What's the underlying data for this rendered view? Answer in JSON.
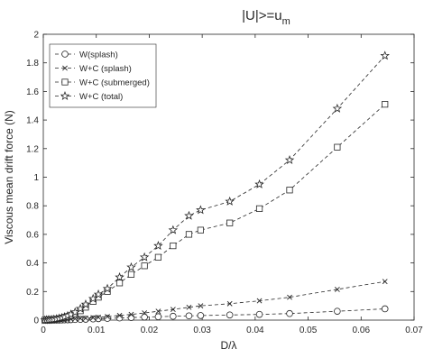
{
  "chart_data": {
    "type": "line",
    "title": "|U|>=u",
    "title_subscript": "m",
    "xlabel": "D/λ",
    "ylabel": "Viscous mean drift force (N)",
    "xlim": [
      0,
      0.07
    ],
    "ylim": [
      0,
      2
    ],
    "x_ticks": [
      "0",
      "0.01",
      "0.02",
      "0.03",
      "0.04",
      "0.05",
      "0.06",
      "0.07"
    ],
    "y_ticks": [
      "0",
      "0.2",
      "0.4",
      "0.6",
      "0.8",
      "1",
      "1.2",
      "1.4",
      "1.6",
      "1.8",
      "2"
    ],
    "x_tick_values": [
      0,
      0.01,
      0.02,
      0.03,
      0.04,
      0.05,
      0.06,
      0.07
    ],
    "y_tick_values": [
      0,
      0.2,
      0.4,
      0.6,
      0.8,
      1.0,
      1.2,
      1.4,
      1.6,
      1.8,
      2.0
    ],
    "grid": false,
    "legend_position": "top-left",
    "line_style": "dashed",
    "color": "#262626",
    "series": [
      {
        "name": "W(splash)",
        "marker": "circle",
        "x": [
          0.0003,
          0.0006,
          0.0009,
          0.0012,
          0.0016,
          0.002,
          0.0025,
          0.003,
          0.0035,
          0.004,
          0.0046,
          0.0052,
          0.006,
          0.007,
          0.008,
          0.0094,
          0.0104,
          0.0121,
          0.0144,
          0.0166,
          0.0191,
          0.0217,
          0.0245,
          0.0275,
          0.0297,
          0.0352,
          0.0408,
          0.0465,
          0.0555,
          0.0645
        ],
        "y": [
          0.0,
          0.0,
          0.0,
          0.0,
          0.0,
          0.0,
          0.0,
          0.0,
          0.001,
          0.002,
          0.002,
          0.003,
          0.004,
          0.005,
          0.006,
          0.008,
          0.01,
          0.012,
          0.015,
          0.018,
          0.021,
          0.024,
          0.027,
          0.03,
          0.032,
          0.036,
          0.04,
          0.046,
          0.062,
          0.079
        ]
      },
      {
        "name": "W+C (splash)",
        "marker": "x",
        "x": [
          0.0003,
          0.0006,
          0.0009,
          0.0012,
          0.0016,
          0.002,
          0.0025,
          0.003,
          0.0035,
          0.004,
          0.0046,
          0.0052,
          0.006,
          0.007,
          0.008,
          0.0094,
          0.0104,
          0.0121,
          0.0144,
          0.0166,
          0.0191,
          0.0217,
          0.0245,
          0.0275,
          0.0297,
          0.0352,
          0.0408,
          0.0465,
          0.0555,
          0.0645
        ],
        "y": [
          0.0,
          0.0,
          0.0,
          0.001,
          0.001,
          0.002,
          0.003,
          0.004,
          0.005,
          0.006,
          0.007,
          0.008,
          0.01,
          0.012,
          0.014,
          0.017,
          0.02,
          0.025,
          0.033,
          0.04,
          0.05,
          0.062,
          0.075,
          0.09,
          0.1,
          0.115,
          0.135,
          0.16,
          0.215,
          0.27
        ]
      },
      {
        "name": "W+C (submerged)",
        "marker": "square",
        "x": [
          0.0003,
          0.0006,
          0.0009,
          0.0012,
          0.0016,
          0.002,
          0.0025,
          0.003,
          0.0035,
          0.004,
          0.0046,
          0.0052,
          0.006,
          0.007,
          0.008,
          0.0094,
          0.0104,
          0.0121,
          0.0144,
          0.0166,
          0.0191,
          0.0217,
          0.0245,
          0.0275,
          0.0297,
          0.0352,
          0.0408,
          0.0465,
          0.0555,
          0.0645
        ],
        "y": [
          0.0,
          0.0,
          0.001,
          0.002,
          0.003,
          0.005,
          0.008,
          0.011,
          0.015,
          0.02,
          0.025,
          0.032,
          0.045,
          0.065,
          0.09,
          0.13,
          0.16,
          0.2,
          0.26,
          0.32,
          0.38,
          0.44,
          0.52,
          0.6,
          0.63,
          0.68,
          0.78,
          0.91,
          1.21,
          1.51
        ]
      },
      {
        "name": "W+C (total)",
        "marker": "star",
        "x": [
          0.0003,
          0.0006,
          0.0009,
          0.0012,
          0.0016,
          0.002,
          0.0025,
          0.003,
          0.0035,
          0.004,
          0.0046,
          0.0052,
          0.006,
          0.007,
          0.008,
          0.0094,
          0.0104,
          0.0121,
          0.0144,
          0.0166,
          0.0191,
          0.0217,
          0.0245,
          0.0275,
          0.0297,
          0.0352,
          0.0408,
          0.0465,
          0.0555,
          0.0645
        ],
        "y": [
          0.0,
          0.001,
          0.001,
          0.002,
          0.003,
          0.005,
          0.008,
          0.012,
          0.016,
          0.022,
          0.03,
          0.04,
          0.055,
          0.08,
          0.11,
          0.15,
          0.18,
          0.22,
          0.3,
          0.37,
          0.44,
          0.52,
          0.63,
          0.73,
          0.77,
          0.83,
          0.95,
          1.12,
          1.48,
          1.85
        ]
      }
    ]
  }
}
